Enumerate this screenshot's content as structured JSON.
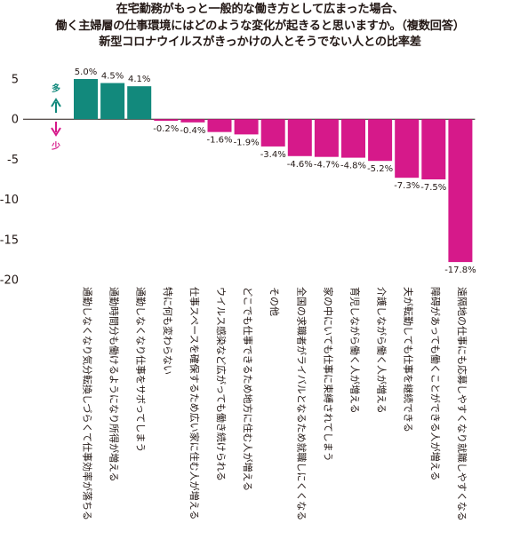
{
  "title": {
    "line1": "在宅勤務がもっと一般的な働き方として広まった場合、",
    "line2": "働く主婦層の仕事環境にはどのような変化が起きると思いますか。（複数回答）",
    "line3": "新型コロナウイルスがきっかけの人とそうでない人との比率差"
  },
  "legend": {
    "up_label": "多",
    "down_label": "少"
  },
  "colors": {
    "positive": "#12897c",
    "negative": "#d6198a",
    "legend_up": "#12897c",
    "legend_down": "#d6198a",
    "axis": "#231815"
  },
  "chart_data": {
    "type": "bar",
    "title": "新型コロナウイルスがきっかけの人とそうでない人との比率差",
    "xlabel": "",
    "ylabel": "",
    "ylim": [
      -20,
      5
    ],
    "yticks": [
      5,
      0,
      -5,
      -10,
      -15,
      -20
    ],
    "grid": false,
    "categories": [
      "通勤しなくなり気分転換しづらくて仕事効率が落ちる",
      "通勤時間分も働けるようになり所得が増える",
      "通勤しなくなり仕事をサボってしまう",
      "特に何も変わらない",
      "仕事スペースを確保するため広い家に住む人が増える",
      "ウイルス感染など広がっても働き続けられる",
      "どこでも仕事できるため地方に住む人が増える",
      "その他",
      "全国の求職者がライバルとなるため就職しにくくなる",
      "家の中にいても仕事に束縛されてしまう",
      "育児しながら働く人が増える",
      "介護しながら働く人が増える",
      "夫が転勤しても仕事を継続できる",
      "障碍があっても働くことができる人が増える",
      "遠隔地の仕事にも応募しやすくなり就職しやすくなる"
    ],
    "values": [
      5.0,
      4.5,
      4.1,
      -0.2,
      -0.4,
      -1.6,
      -1.9,
      -3.4,
      -4.6,
      -4.7,
      -4.8,
      -5.2,
      -7.3,
      -7.5,
      -17.8
    ],
    "value_labels": [
      "5.0%",
      "4.5%",
      "4.1%",
      "-0.2%",
      "-0.4%",
      "-1.6%",
      "-1.9%",
      "-3.4%",
      "-4.6%",
      "-4.7%",
      "-4.8%",
      "-5.2%",
      "-7.3%",
      "-7.5%",
      "-17.8%"
    ]
  }
}
